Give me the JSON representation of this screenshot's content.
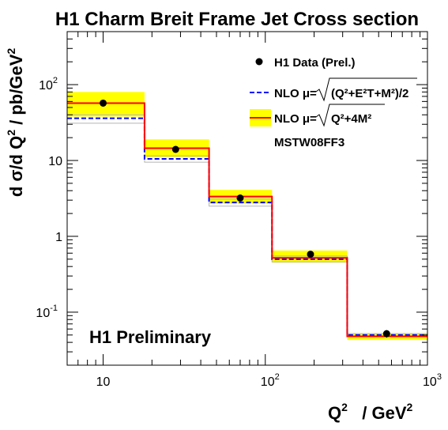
{
  "chart_data": {
    "type": "line",
    "title": "H1 Charm Breit Frame Jet Cross section",
    "ylabel_parts": [
      "d σ/d Q",
      "2",
      " / pb/GeV",
      "2"
    ],
    "xlabel_parts": [
      "Q",
      "2",
      "   / GeV",
      "2"
    ],
    "x_scale": "log",
    "y_scale": "log",
    "xlim": [
      6,
      1000
    ],
    "ylim": [
      0.02,
      500
    ],
    "x_tick_labels": [
      {
        "v": 10,
        "text": "10",
        "sup": ""
      },
      {
        "v": 100,
        "text": "10",
        "sup": "2"
      },
      {
        "v": 1000,
        "text": "10",
        "sup": "3"
      }
    ],
    "y_tick_labels": [
      {
        "v": 100,
        "text": "10",
        "sup": "2"
      },
      {
        "v": 10,
        "text": "10",
        "sup": ""
      },
      {
        "v": 1,
        "text": "1",
        "sup": ""
      },
      {
        "v": 0.1,
        "text": "10",
        "sup": "-1"
      }
    ],
    "bins": [
      {
        "lo": 6,
        "hi": 18,
        "data": {
          "x": 10,
          "y": 57,
          "err_lo": 52,
          "err_hi": 62
        },
        "nlo_r": {
          "y": 57,
          "band": [
            38,
            80
          ]
        },
        "nlo_b": {
          "y": 36,
          "band": [
            31,
            40
          ]
        }
      },
      {
        "lo": 18,
        "hi": 45,
        "data": {
          "x": 28,
          "y": 14,
          "err_lo": 12.8,
          "err_hi": 15.2
        },
        "nlo_r": {
          "y": 14.5,
          "band": [
            11,
            19
          ]
        },
        "nlo_b": {
          "y": 10.5,
          "band": [
            9.5,
            11.5
          ]
        }
      },
      {
        "lo": 45,
        "hi": 110,
        "data": {
          "x": 70,
          "y": 3.2,
          "err_lo": 2.95,
          "err_hi": 3.45
        },
        "nlo_r": {
          "y": 3.35,
          "band": [
            2.7,
            4.1
          ]
        },
        "nlo_b": {
          "y": 2.8,
          "band": [
            2.5,
            3.1
          ]
        }
      },
      {
        "lo": 110,
        "hi": 320,
        "data": {
          "x": 190,
          "y": 0.58,
          "err_lo": 0.53,
          "err_hi": 0.63
        },
        "nlo_r": {
          "y": 0.52,
          "band": [
            0.45,
            0.65
          ]
        },
        "nlo_b": {
          "y": 0.5,
          "band": [
            0.46,
            0.55
          ]
        }
      },
      {
        "lo": 320,
        "hi": 1000,
        "data": {
          "x": 560,
          "y": 0.052,
          "err_lo": 0.046,
          "err_hi": 0.058
        },
        "nlo_r": {
          "y": 0.048,
          "band": [
            0.043,
            0.053
          ]
        },
        "nlo_b": {
          "y": 0.05,
          "band": [
            0.048,
            0.052
          ]
        }
      }
    ],
    "legend": {
      "placement": "top-right",
      "data_label": "H1 Data (Prel.)",
      "nlo_b_prefix": "NLO μ=",
      "nlo_b_formula": "(Q²+E²T+M²)/2",
      "nlo_r_prefix": "NLO μ=",
      "nlo_r_formula": "Q²+4M²",
      "pdf_label": "MSTW08FF3"
    },
    "annotation": "H1 Preliminary",
    "colors": {
      "data": "#000000",
      "nlo_r": "#ff0000",
      "nlo_r_band": "#ffff00",
      "nlo_b": "#0000ff",
      "nlo_b_band": "#b4b4b4"
    }
  }
}
